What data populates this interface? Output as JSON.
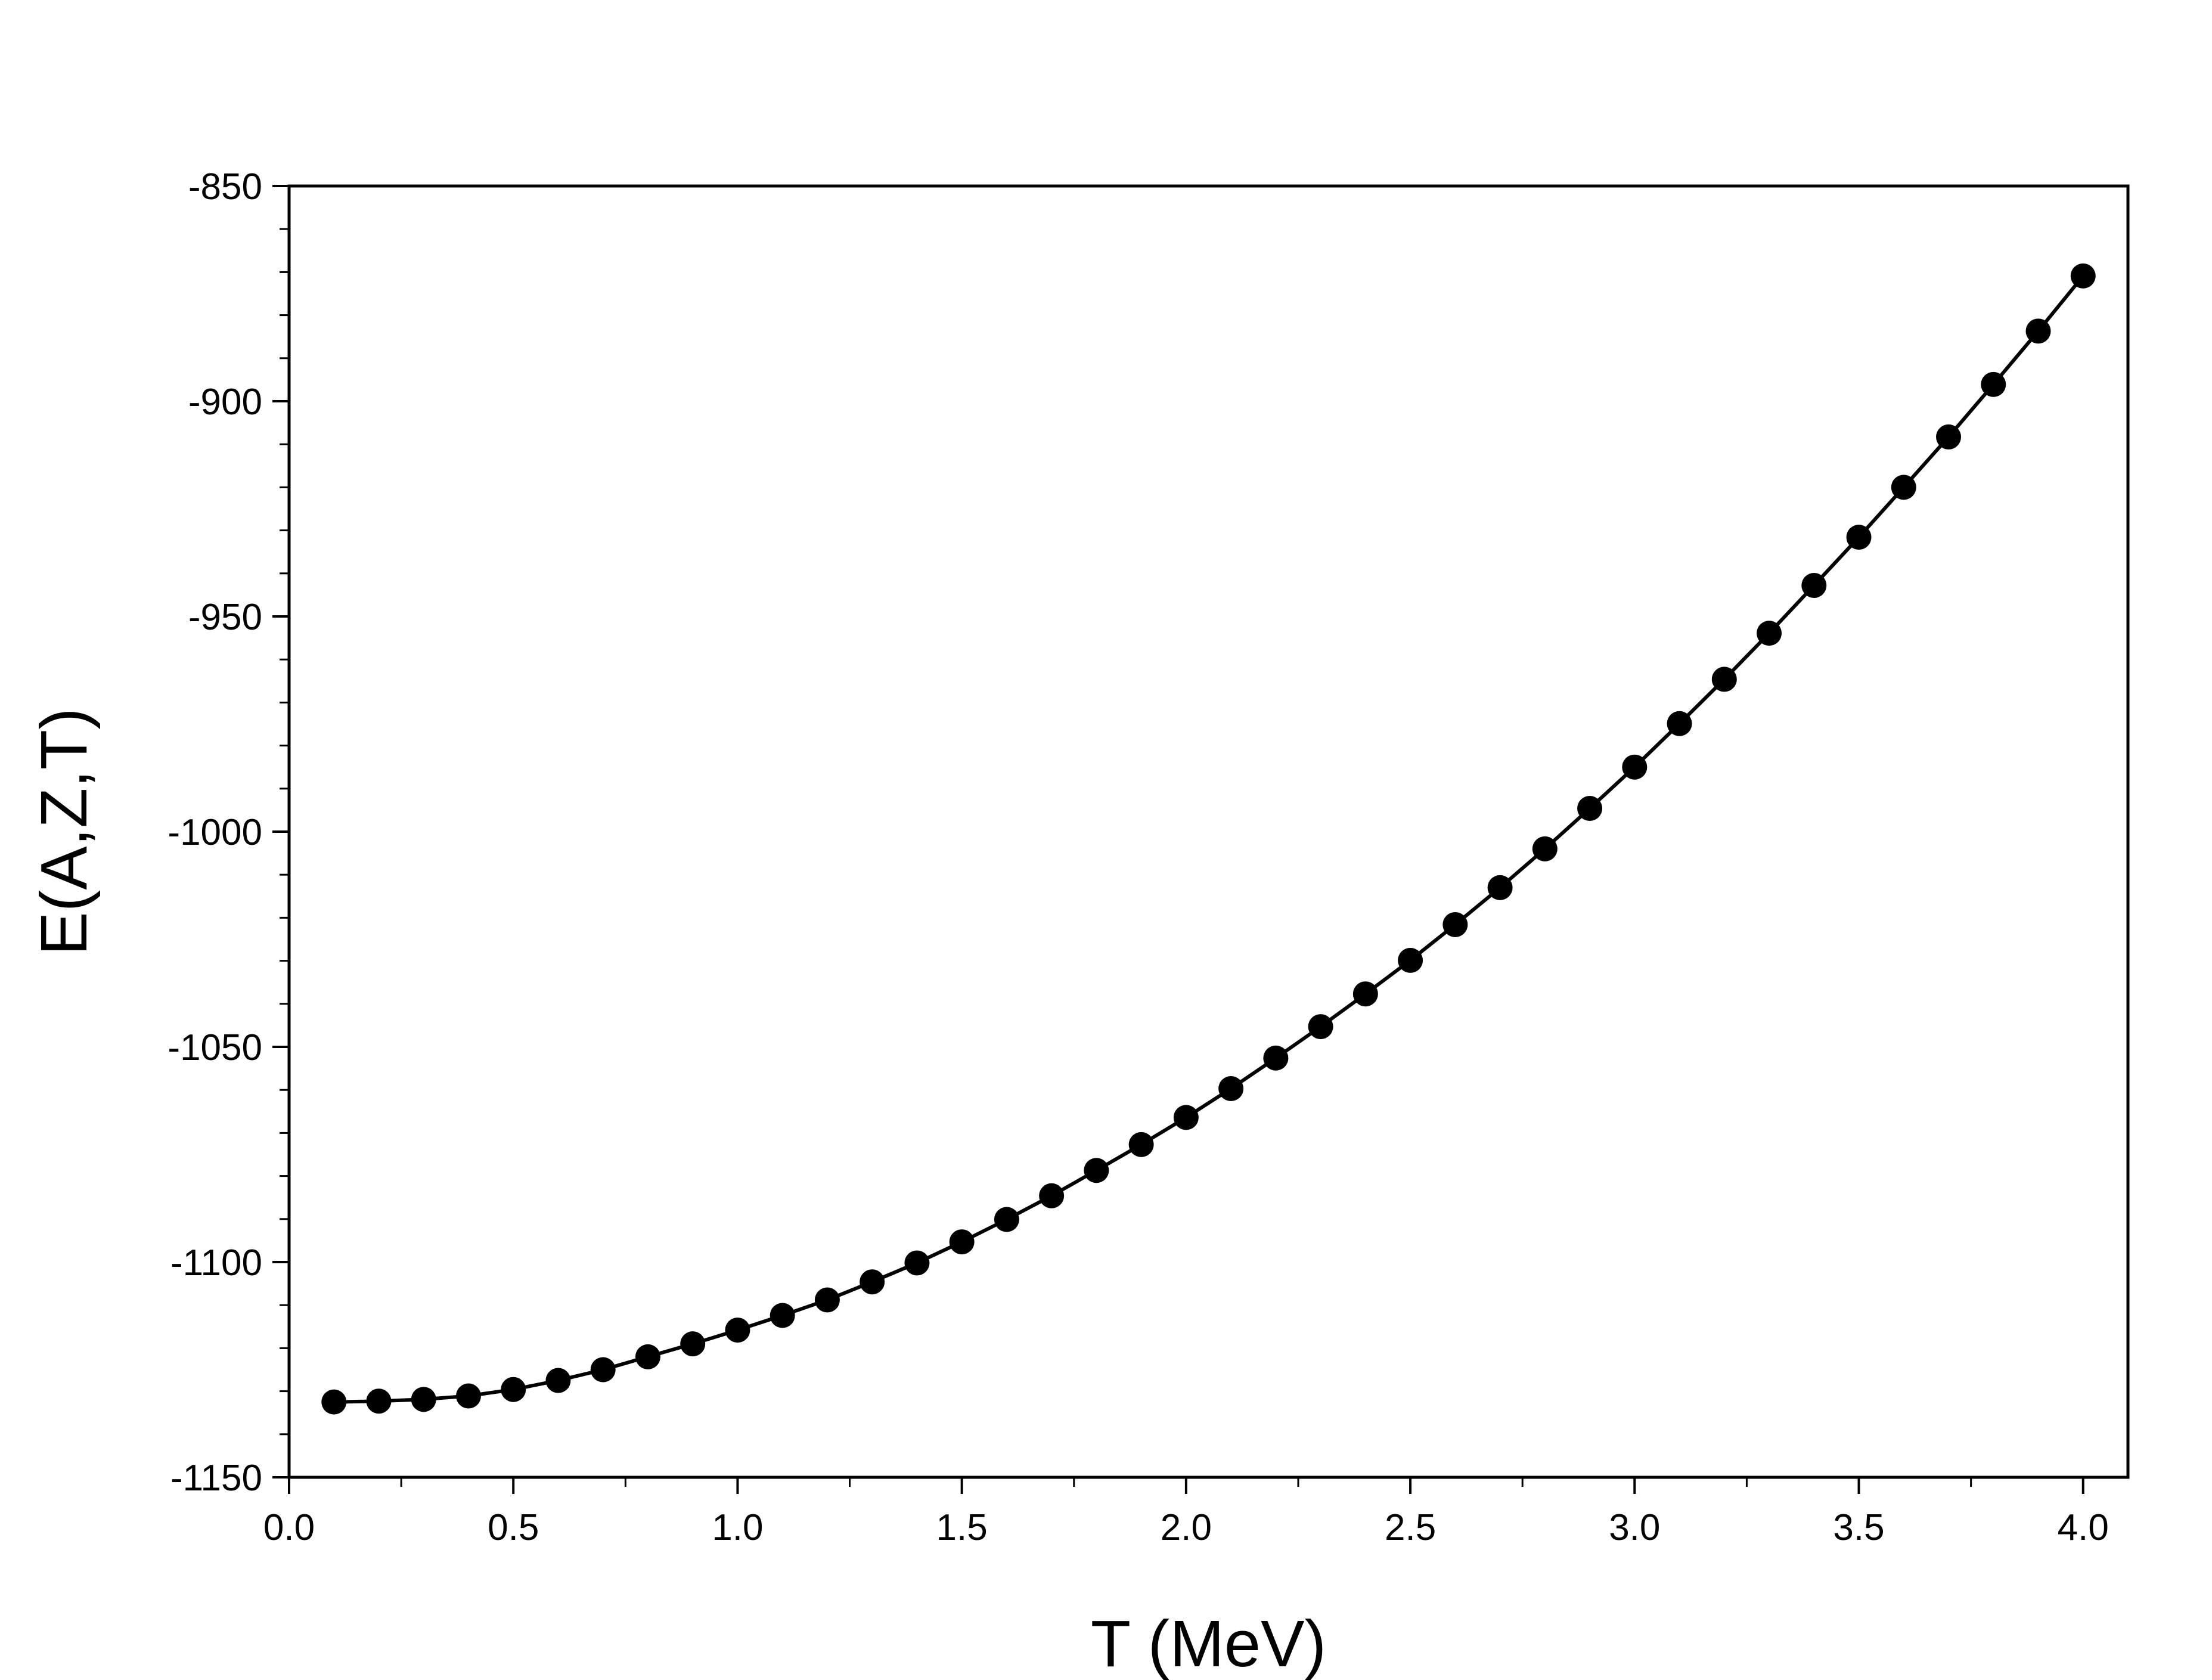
{
  "chart_data": {
    "type": "line",
    "title": "",
    "xlabel": "T (MeV)",
    "ylabel": "E(A,Z,T)",
    "xlim": [
      0.0,
      4.1
    ],
    "ylim": [
      -1150,
      -850
    ],
    "x_ticks": [
      0.0,
      0.5,
      1.0,
      1.5,
      2.0,
      2.5,
      3.0,
      3.5,
      4.0
    ],
    "x_tick_labels": [
      "0.0",
      "0.5",
      "1.0",
      "1.5",
      "2.0",
      "2.5",
      "3.0",
      "3.5",
      "4.0"
    ],
    "y_ticks": [
      -1150,
      -1100,
      -1050,
      -1000,
      -950,
      -900,
      -850
    ],
    "y_tick_labels": [
      "-1150",
      "-1100",
      "-1050",
      "-1000",
      "-950",
      "-900",
      "-850"
    ],
    "grid": false,
    "series": [
      {
        "marker": "circle",
        "color": "#000000",
        "x": [
          0.1,
          0.2,
          0.3,
          0.4,
          0.5,
          0.6,
          0.7,
          0.8,
          0.9,
          1.0,
          1.1,
          1.2,
          1.3,
          1.4,
          1.5,
          1.6,
          1.7,
          1.8,
          1.9,
          2.0,
          2.1,
          2.2,
          2.3,
          2.4,
          2.5,
          2.6,
          2.7,
          2.8,
          2.9,
          3.0,
          3.1,
          3.2,
          3.3,
          3.4,
          3.5,
          3.6,
          3.7,
          3.8,
          3.9,
          4.0
        ],
        "values": [
          -1132.5,
          -1132.3,
          -1131.9,
          -1131.1,
          -1129.6,
          -1127.5,
          -1125.0,
          -1122.0,
          -1119.0,
          -1115.8,
          -1112.4,
          -1108.8,
          -1104.6,
          -1100.2,
          -1095.3,
          -1090.1,
          -1084.6,
          -1078.7,
          -1072.7,
          -1066.4,
          -1059.7,
          -1052.6,
          -1045.3,
          -1037.7,
          -1029.9,
          -1021.6,
          -1013.0,
          -1004.0,
          -994.6,
          -985.0,
          -974.9,
          -964.6,
          -953.9,
          -942.8,
          -931.6,
          -920.0,
          -908.3,
          -896.1,
          -883.7,
          -870.9
        ]
      }
    ]
  }
}
